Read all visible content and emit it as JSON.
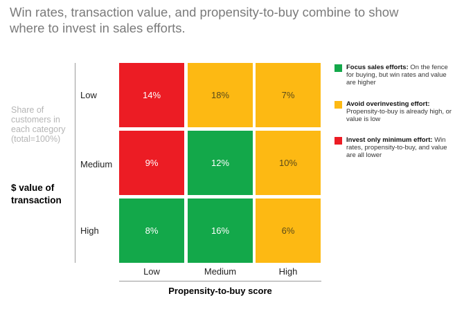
{
  "chart_data": {
    "type": "heatmap",
    "title": "Win rates, transaction value, and propensity-to-buy combine to show where to invest in sales efforts.",
    "side_note": "Share of customers in each category (total=100%)",
    "ylabel": "$ value of transaction",
    "xlabel": "Propensity-to-buy score",
    "rows": [
      "Low",
      "Medium",
      "High"
    ],
    "columns": [
      "Low",
      "Medium",
      "High"
    ],
    "cells": [
      [
        {
          "value": "14%",
          "category": "minimum"
        },
        {
          "value": "18%",
          "category": "avoid"
        },
        {
          "value": "7%",
          "category": "avoid"
        }
      ],
      [
        {
          "value": "9%",
          "category": "minimum"
        },
        {
          "value": "12%",
          "category": "focus"
        },
        {
          "value": "10%",
          "category": "avoid"
        }
      ],
      [
        {
          "value": "8%",
          "category": "focus"
        },
        {
          "value": "16%",
          "category": "focus"
        },
        {
          "value": "6%",
          "category": "avoid"
        }
      ]
    ],
    "legend": [
      {
        "key": "focus",
        "color": "#13a84a",
        "bold": "Focus sales efforts:",
        "text": " On the fence for buying, but win rates and value are higher"
      },
      {
        "key": "avoid",
        "color": "#fdb913",
        "bold": "Avoid overinvesting effort:",
        "text": " Propensity-to-buy is already high, or value is low"
      },
      {
        "key": "minimum",
        "color": "#ec1c24",
        "bold": "Invest only minimum effort:",
        "text": " Win rates, propensity-to-buy, and value are all lower"
      }
    ],
    "colors": {
      "focus": "#13a84a",
      "avoid": "#fdb913",
      "minimum": "#ec1c24",
      "text_on_color": "#ffffff",
      "text_on_yellow": "#5a4a1a"
    }
  }
}
